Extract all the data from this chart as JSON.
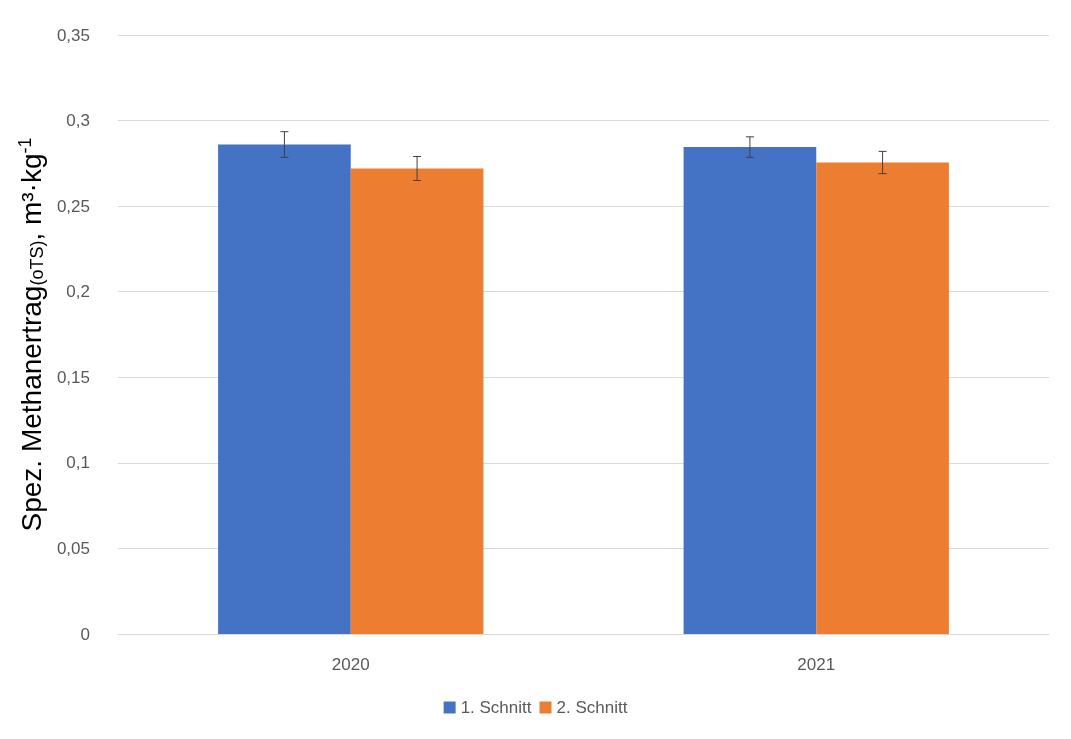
{
  "chart_data": {
    "type": "bar",
    "ylabel": "Spez. Methanertrag$_{(oTS)}$, m³·kg$^{-1}$",
    "categories": [
      "2020",
      "2021"
    ],
    "series": [
      {
        "name": "1. Schnitt",
        "color": "#4472c4",
        "values": [
          0.286,
          0.2845
        ],
        "errors": [
          0.0075,
          0.006
        ]
      },
      {
        "name": "2. Schnitt",
        "color": "#ed7d31",
        "values": [
          0.272,
          0.2755
        ],
        "errors": [
          0.007,
          0.0065
        ]
      }
    ],
    "ylim": [
      0,
      0.35
    ],
    "yticks": [
      0,
      {
        "value": 0.05,
        "label": "0,05"
      },
      {
        "value": 0.1,
        "label": "0,1"
      },
      {
        "value": 0.15,
        "label": "0,15"
      },
      {
        "value": 0.2,
        "label": "0,2"
      },
      {
        "value": 0.25,
        "label": "0,25"
      },
      {
        "value": 0.3,
        "label": "0,3"
      },
      {
        "value": 0.35,
        "label": "0,35"
      }
    ],
    "grid": "y",
    "legend": "bottom"
  }
}
